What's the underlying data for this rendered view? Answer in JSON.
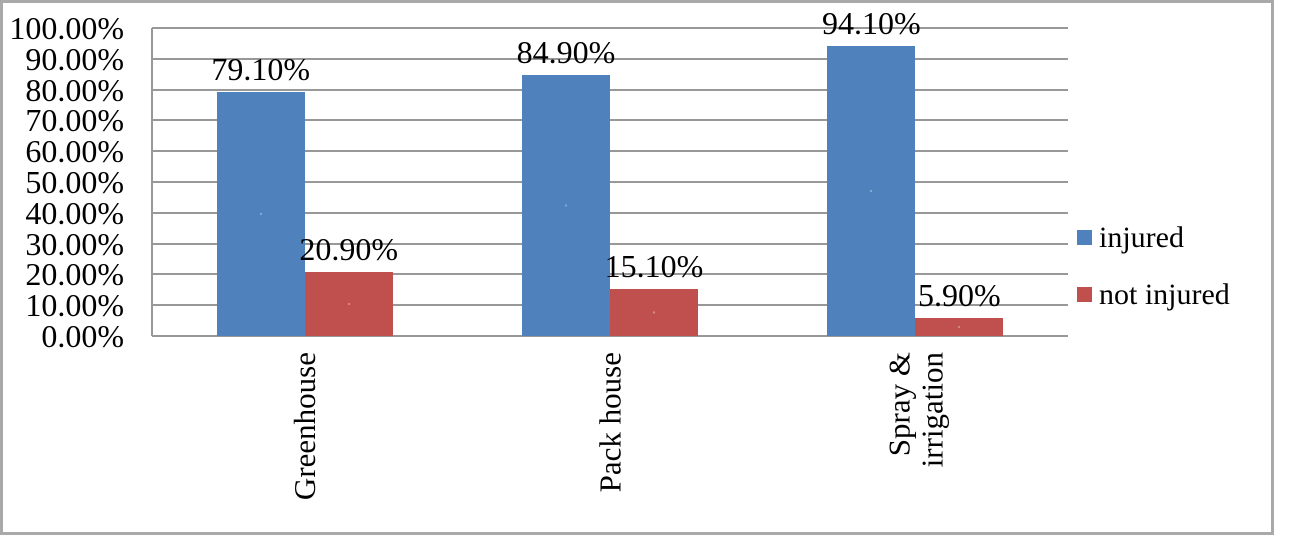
{
  "chart_data": {
    "type": "bar",
    "categories": [
      "Greenhouse",
      "Pack house",
      "Spray & irrigation"
    ],
    "category_label_lines": [
      [
        "Greenhouse"
      ],
      [
        "Pack house"
      ],
      [
        "Spray &",
        "irrigation"
      ]
    ],
    "series": [
      {
        "name": "injured",
        "color": "#4f81bd",
        "values": [
          79.1,
          84.9,
          94.1
        ],
        "labels": [
          "79.10%",
          "84.90%",
          "94.10%"
        ]
      },
      {
        "name": "not injured",
        "color": "#c0504d",
        "values": [
          20.9,
          15.1,
          5.9
        ],
        "labels": [
          "20.90%",
          "15.10%",
          "5.90%"
        ]
      }
    ],
    "y_axis": {
      "ticks": [
        "100.00%",
        "90.00%",
        "80.00%",
        "70.00%",
        "60.00%",
        "50.00%",
        "40.00%",
        "30.00%",
        "20.00%",
        "10.00%",
        "0.00%"
      ],
      "min": 0,
      "max": 100,
      "step": 10
    },
    "grid": true,
    "legend_position": "right"
  },
  "colors": {
    "injured": "#4f81bd",
    "not_injured": "#c0504d",
    "gridline": "#989898",
    "frame_border": "#a9a9a9",
    "text": "#000000",
    "background": "#ffffff"
  }
}
